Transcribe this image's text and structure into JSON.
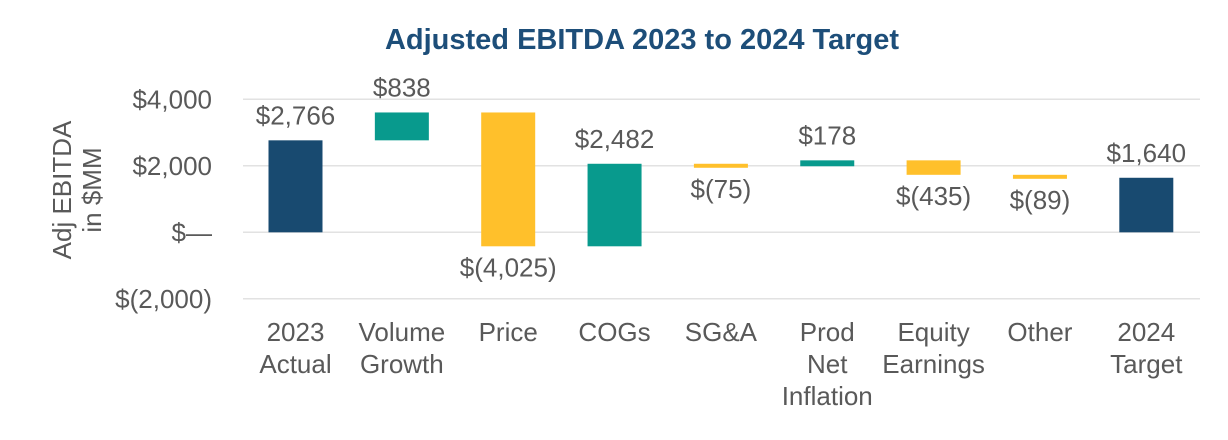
{
  "chart": {
    "title": "Adjusted EBITDA 2023 to 2024 Target",
    "y_axis_title": "Adj EBITDA\nin $MM"
  },
  "chart_data": {
    "type": "bar",
    "subtype": "waterfall",
    "title": "Adjusted EBITDA 2023 to 2024 Target",
    "xlabel": "",
    "ylabel": "Adj EBITDA in $MM",
    "categories": [
      "2023\nActual",
      "Volume\nGrowth",
      "Price",
      "COGs",
      "SG&A",
      "Prod\nNet\nInflation",
      "Equity\nEarnings",
      "Other",
      "2024\nTarget"
    ],
    "values": [
      2766,
      838,
      -4025,
      2482,
      -75,
      178,
      -435,
      -89,
      1640
    ],
    "data_labels": [
      "$2,766",
      "$838",
      "$(4,025)",
      "$2,482",
      "$(75)",
      "$178",
      "$(435)",
      "$(89)",
      "$1,640"
    ],
    "bar_roles": [
      "total",
      "increase",
      "decrease",
      "increase",
      "decrease",
      "increase",
      "decrease",
      "decrease",
      "total"
    ],
    "y_ticks": [
      {
        "label": "$4,000",
        "value": 4000
      },
      {
        "label": "$2,000",
        "value": 2000
      },
      {
        "label": "$—",
        "value": 0
      },
      {
        "label": "$(2,000)",
        "value": -2000
      }
    ],
    "ylim": [
      -2000,
      4400
    ],
    "grid": true,
    "legend": false,
    "colors": {
      "total": "#184A70",
      "increase": "#089A8D",
      "decrease": "#FFC02B",
      "grid": "#E2E2E2",
      "text": "#595959",
      "title": "#1D4E79"
    }
  }
}
